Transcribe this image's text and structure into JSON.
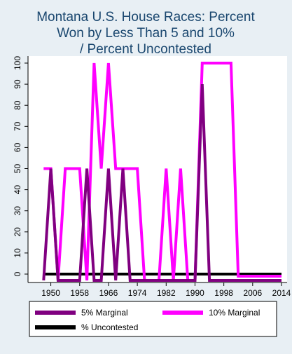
{
  "chart_data": {
    "type": "line",
    "title_lines": [
      "Montana U.S. House Races: Percent",
      "Won by Less Than 5 and 10%",
      "/ Percent Uncontested"
    ],
    "xlabel": "",
    "ylabel": "",
    "xlim": [
      1946,
      2014
    ],
    "ylim": [
      -5,
      103
    ],
    "xticks": [
      1950,
      1958,
      1966,
      1974,
      1982,
      1990,
      1998,
      2006,
      2014
    ],
    "yticks": [
      0,
      10,
      20,
      30,
      40,
      50,
      60,
      70,
      80,
      90,
      100
    ],
    "grid": false,
    "legend": "bottom",
    "series": [
      {
        "name": "% Uncontested",
        "color": "#000000",
        "x": [
          1948,
          2014
        ],
        "y": [
          0,
          0
        ]
      },
      {
        "name": "10% Marginal",
        "color": "#ff00ff",
        "x": [
          1948,
          1950,
          1952,
          1954,
          1956,
          1958,
          1960,
          1962,
          1964,
          1966,
          1968,
          1970,
          1972,
          1974,
          1976,
          1978,
          1980,
          1982,
          1984,
          1986,
          1988,
          1990,
          1992,
          1994,
          1996,
          1998,
          2000,
          2002,
          2004,
          2006,
          2008,
          2010,
          2012,
          2014
        ],
        "y": [
          50,
          50,
          -3,
          50,
          50,
          50,
          -3,
          100,
          50,
          100,
          50,
          50,
          50,
          50,
          -3,
          -3,
          -3,
          50,
          -3,
          50,
          -3,
          -3,
          100,
          100,
          100,
          100,
          100,
          -1,
          -1,
          -1,
          -1,
          -1,
          -1,
          -1
        ]
      },
      {
        "name": "5% Marginal",
        "color": "#800080",
        "x": [
          1948,
          1950,
          1952,
          1954,
          1956,
          1958,
          1960,
          1962,
          1964,
          1966,
          1968,
          1970,
          1972,
          1974,
          1976,
          1978,
          1980,
          1982,
          1984,
          1986,
          1988,
          1990,
          1992,
          1994,
          1996,
          1998,
          2000,
          2002,
          2004,
          2006,
          2008,
          2010,
          2012,
          2014
        ],
        "y": [
          -3,
          50,
          -3,
          -3,
          -3,
          -3,
          50,
          -3,
          -3,
          50,
          -3,
          50,
          -3,
          -3,
          -3,
          -3,
          -3,
          -3,
          -3,
          -3,
          -3,
          -3,
          90,
          -3,
          -3,
          -3,
          -3,
          -3,
          -3,
          -3,
          -3,
          -3,
          -3,
          -3
        ]
      }
    ],
    "legend_items": [
      {
        "label": "5% Marginal",
        "color": "#800080"
      },
      {
        "label": "10% Marginal",
        "color": "#ff00ff"
      },
      {
        "label": "% Uncontested",
        "color": "#000000"
      }
    ]
  }
}
